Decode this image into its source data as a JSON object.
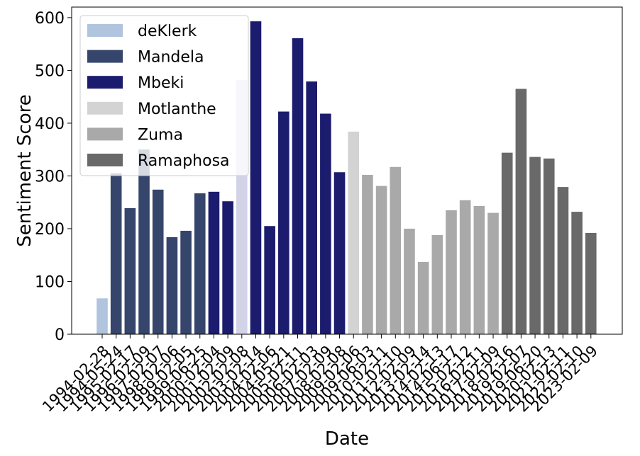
{
  "chart_data": {
    "type": "bar",
    "xlabel": "Date",
    "ylabel": "Sentiment Score",
    "ylim": [
      0,
      620
    ],
    "yticks": [
      0,
      100,
      200,
      300,
      400,
      500,
      600
    ],
    "grid": false,
    "legend_position": "top-left",
    "categories": [
      "1994-02-28",
      "1994-05-24",
      "1995-02-17",
      "1996-02-09",
      "1997-02-07",
      "1998-02-06",
      "1999-02-05",
      "1999-06-25",
      "2000-02-04",
      "2001-02-09",
      "2002-02-08",
      "2003-02-14",
      "2004-02-06",
      "2004-05-21",
      "2005-02-11",
      "2006-02-03",
      "2007-02-09",
      "2008-02-08",
      "2009-02-06",
      "2009-06-03",
      "2010-02-11",
      "2011-02-10",
      "2012-02-09",
      "2013-02-14",
      "2014-02-13",
      "2014-06-17",
      "2015-02-12",
      "2016-02-11",
      "2017-02-09",
      "2018-02-16",
      "2019-02-07",
      "2019-06-20",
      "2020-02-13",
      "2021-02-11",
      "2022-02-10",
      "2023-02-09"
    ],
    "values": [
      68,
      305,
      239,
      350,
      274,
      184,
      196,
      267,
      270,
      252,
      482,
      593,
      205,
      422,
      561,
      479,
      418,
      307,
      384,
      302,
      281,
      317,
      200,
      137,
      188,
      235,
      254,
      243,
      230,
      344,
      465,
      336,
      333,
      279,
      232,
      192
    ],
    "highlight_index": 10,
    "highlight_color": "#D3D3E8",
    "presidents": [
      "deKlerk",
      "Mandela",
      "Mandela",
      "Mandela",
      "Mandela",
      "Mandela",
      "Mandela",
      "Mandela",
      "Mbeki",
      "Mbeki",
      "Mbeki",
      "Mbeki",
      "Mbeki",
      "Mbeki",
      "Mbeki",
      "Mbeki",
      "Mbeki",
      "Mbeki",
      " Motlanthe",
      "Zuma",
      "Zuma",
      "Zuma",
      "Zuma",
      "Zuma",
      "Zuma",
      "Zuma",
      "Zuma",
      "Zuma",
      "Zuma",
      "Ramaphosa",
      "Ramaphosa",
      "Ramaphosa",
      "Ramaphosa",
      "Ramaphosa",
      "Ramaphosa",
      "Ramaphosa"
    ],
    "series": [
      {
        "name": "deKlerk",
        "color": "#B0C4DE"
      },
      {
        "name": "Mandela",
        "color": "#36456B"
      },
      {
        "name": "Mbeki",
        "color": "#1C1C6E"
      },
      {
        "name": " Motlanthe",
        "color": "#D3D3D3"
      },
      {
        "name": "Zuma",
        "color": "#A9A9A9"
      },
      {
        "name": "Ramaphosa",
        "color": "#696969"
      }
    ]
  }
}
